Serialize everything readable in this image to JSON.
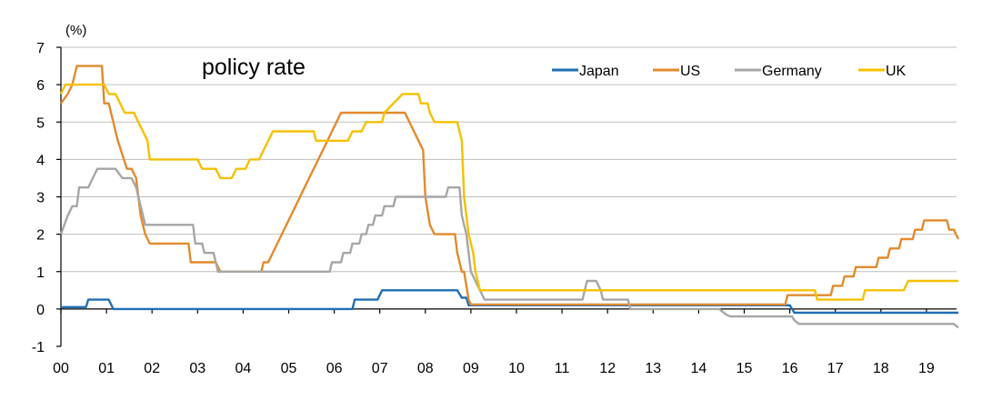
{
  "chart_data": {
    "type": "line",
    "title": "policy rate",
    "ylabel": "(%)",
    "xlabel": "",
    "xlim": [
      0,
      19.7
    ],
    "ylim": [
      -1,
      7
    ],
    "grid": true,
    "legend": "top-right",
    "x_ticks": [
      {
        "v": 0,
        "label": "00"
      },
      {
        "v": 1,
        "label": "01"
      },
      {
        "v": 2,
        "label": "02"
      },
      {
        "v": 3,
        "label": "03"
      },
      {
        "v": 4,
        "label": "04"
      },
      {
        "v": 5,
        "label": "05"
      },
      {
        "v": 6,
        "label": "06"
      },
      {
        "v": 7,
        "label": "07"
      },
      {
        "v": 8,
        "label": "08"
      },
      {
        "v": 9,
        "label": "09"
      },
      {
        "v": 10,
        "label": "10"
      },
      {
        "v": 11,
        "label": "11"
      },
      {
        "v": 12,
        "label": "12"
      },
      {
        "v": 13,
        "label": "13"
      },
      {
        "v": 14,
        "label": "14"
      },
      {
        "v": 15,
        "label": "15"
      },
      {
        "v": 16,
        "label": "16"
      },
      {
        "v": 17,
        "label": "17"
      },
      {
        "v": 18,
        "label": "18"
      },
      {
        "v": 19,
        "label": "19"
      }
    ],
    "y_ticks": [
      {
        "v": 7,
        "label": "7"
      },
      {
        "v": 6,
        "label": "6"
      },
      {
        "v": 5,
        "label": "5"
      },
      {
        "v": 4,
        "label": "4"
      },
      {
        "v": 3,
        "label": "3"
      },
      {
        "v": 2,
        "label": "2"
      },
      {
        "v": 1,
        "label": "1"
      },
      {
        "v": 0,
        "label": "0"
      },
      {
        "v": -1,
        "label": "-1"
      }
    ],
    "series": [
      {
        "name": "Japan",
        "color": "#1f6fb4",
        "points": [
          [
            0,
            0.05
          ],
          [
            0.55,
            0.05
          ],
          [
            0.6,
            0.25
          ],
          [
            1.05,
            0.25
          ],
          [
            1.15,
            0
          ],
          [
            6.4,
            0
          ],
          [
            6.45,
            0.25
          ],
          [
            6.95,
            0.25
          ],
          [
            7.05,
            0.5
          ],
          [
            8.7,
            0.5
          ],
          [
            8.8,
            0.3
          ],
          [
            8.9,
            0.3
          ],
          [
            8.95,
            0.1
          ],
          [
            16.0,
            0.1
          ],
          [
            16.1,
            -0.1
          ],
          [
            19.7,
            -0.1
          ]
        ]
      },
      {
        "name": "US",
        "color": "#e38a2c",
        "points": [
          [
            0,
            5.5
          ],
          [
            0.15,
            5.75
          ],
          [
            0.25,
            6.0
          ],
          [
            0.35,
            6.5
          ],
          [
            0.9,
            6.5
          ],
          [
            0.95,
            5.5
          ],
          [
            1.05,
            5.5
          ],
          [
            1.25,
            4.5
          ],
          [
            1.45,
            3.75
          ],
          [
            1.55,
            3.75
          ],
          [
            1.65,
            3.5
          ],
          [
            1.75,
            2.5
          ],
          [
            1.85,
            2.0
          ],
          [
            1.95,
            1.75
          ],
          [
            2.8,
            1.75
          ],
          [
            2.85,
            1.25
          ],
          [
            3.4,
            1.25
          ],
          [
            3.5,
            1.0
          ],
          [
            4.4,
            1.0
          ],
          [
            4.45,
            1.25
          ],
          [
            4.55,
            1.25
          ],
          [
            4.65,
            1.5
          ],
          [
            4.75,
            1.75
          ],
          [
            4.85,
            2.0
          ],
          [
            4.95,
            2.25
          ],
          [
            5.05,
            2.5
          ],
          [
            5.15,
            2.75
          ],
          [
            5.25,
            3.0
          ],
          [
            5.35,
            3.25
          ],
          [
            5.45,
            3.5
          ],
          [
            5.55,
            3.75
          ],
          [
            5.65,
            4.0
          ],
          [
            5.75,
            4.25
          ],
          [
            5.85,
            4.5
          ],
          [
            5.95,
            4.75
          ],
          [
            6.05,
            5.0
          ],
          [
            6.15,
            5.25
          ],
          [
            7.55,
            5.25
          ],
          [
            7.65,
            5.0
          ],
          [
            7.75,
            4.75
          ],
          [
            7.85,
            4.5
          ],
          [
            7.95,
            4.25
          ],
          [
            8.0,
            3.0
          ],
          [
            8.1,
            2.25
          ],
          [
            8.2,
            2.0
          ],
          [
            8.65,
            2.0
          ],
          [
            8.7,
            1.5
          ],
          [
            8.8,
            1.0
          ],
          [
            8.85,
            1.0
          ],
          [
            8.95,
            0.25
          ],
          [
            9.0,
            0.12
          ],
          [
            15.9,
            0.12
          ],
          [
            15.95,
            0.37
          ],
          [
            16.9,
            0.37
          ],
          [
            16.95,
            0.62
          ],
          [
            17.15,
            0.62
          ],
          [
            17.2,
            0.87
          ],
          [
            17.4,
            0.87
          ],
          [
            17.45,
            1.12
          ],
          [
            17.9,
            1.12
          ],
          [
            17.95,
            1.37
          ],
          [
            18.15,
            1.37
          ],
          [
            18.2,
            1.62
          ],
          [
            18.4,
            1.62
          ],
          [
            18.45,
            1.87
          ],
          [
            18.7,
            1.87
          ],
          [
            18.75,
            2.12
          ],
          [
            18.9,
            2.12
          ],
          [
            18.95,
            2.37
          ],
          [
            19.45,
            2.37
          ],
          [
            19.5,
            2.12
          ],
          [
            19.6,
            2.12
          ],
          [
            19.7,
            1.87
          ]
        ]
      },
      {
        "name": "Germany",
        "color": "#a6a6a6",
        "points": [
          [
            0,
            2.0
          ],
          [
            0.15,
            2.5
          ],
          [
            0.25,
            2.75
          ],
          [
            0.35,
            2.75
          ],
          [
            0.4,
            3.25
          ],
          [
            0.6,
            3.25
          ],
          [
            0.7,
            3.5
          ],
          [
            0.8,
            3.75
          ],
          [
            1.2,
            3.75
          ],
          [
            1.35,
            3.5
          ],
          [
            1.55,
            3.5
          ],
          [
            1.65,
            3.25
          ],
          [
            1.75,
            2.75
          ],
          [
            1.85,
            2.25
          ],
          [
            2.9,
            2.25
          ],
          [
            2.95,
            1.75
          ],
          [
            3.1,
            1.75
          ],
          [
            3.15,
            1.5
          ],
          [
            3.35,
            1.5
          ],
          [
            3.45,
            1.0
          ],
          [
            5.9,
            1.0
          ],
          [
            5.95,
            1.25
          ],
          [
            6.15,
            1.25
          ],
          [
            6.2,
            1.5
          ],
          [
            6.35,
            1.5
          ],
          [
            6.4,
            1.75
          ],
          [
            6.55,
            1.75
          ],
          [
            6.6,
            2.0
          ],
          [
            6.7,
            2.0
          ],
          [
            6.75,
            2.25
          ],
          [
            6.85,
            2.25
          ],
          [
            6.9,
            2.5
          ],
          [
            7.05,
            2.5
          ],
          [
            7.1,
            2.75
          ],
          [
            7.3,
            2.75
          ],
          [
            7.35,
            3.0
          ],
          [
            8.45,
            3.0
          ],
          [
            8.5,
            3.25
          ],
          [
            8.75,
            3.25
          ],
          [
            8.8,
            2.5
          ],
          [
            8.9,
            2.0
          ],
          [
            9.0,
            1.0
          ],
          [
            9.3,
            0.25
          ],
          [
            11.45,
            0.25
          ],
          [
            11.5,
            0.5
          ],
          [
            11.55,
            0.75
          ],
          [
            11.75,
            0.75
          ],
          [
            11.85,
            0.5
          ],
          [
            11.9,
            0.25
          ],
          [
            12.45,
            0.25
          ],
          [
            12.5,
            0.0
          ],
          [
            14.45,
            0.0
          ],
          [
            14.5,
            -0.05
          ],
          [
            14.6,
            -0.15
          ],
          [
            14.7,
            -0.2
          ],
          [
            16.05,
            -0.2
          ],
          [
            16.1,
            -0.3
          ],
          [
            16.2,
            -0.4
          ],
          [
            19.6,
            -0.4
          ],
          [
            19.7,
            -0.5
          ]
        ]
      },
      {
        "name": "UK",
        "color": "#f5c000",
        "points": [
          [
            0,
            5.75
          ],
          [
            0.1,
            6.0
          ],
          [
            0.95,
            6.0
          ],
          [
            1.05,
            5.75
          ],
          [
            1.2,
            5.75
          ],
          [
            1.3,
            5.5
          ],
          [
            1.4,
            5.25
          ],
          [
            1.6,
            5.25
          ],
          [
            1.7,
            5.0
          ],
          [
            1.8,
            4.75
          ],
          [
            1.9,
            4.5
          ],
          [
            1.95,
            4.0
          ],
          [
            3.0,
            4.0
          ],
          [
            3.1,
            3.75
          ],
          [
            3.4,
            3.75
          ],
          [
            3.5,
            3.5
          ],
          [
            3.75,
            3.5
          ],
          [
            3.85,
            3.75
          ],
          [
            4.05,
            3.75
          ],
          [
            4.15,
            4.0
          ],
          [
            4.35,
            4.0
          ],
          [
            4.45,
            4.25
          ],
          [
            4.55,
            4.5
          ],
          [
            4.65,
            4.75
          ],
          [
            5.55,
            4.75
          ],
          [
            5.6,
            4.5
          ],
          [
            6.3,
            4.5
          ],
          [
            6.4,
            4.75
          ],
          [
            6.6,
            4.75
          ],
          [
            6.7,
            5.0
          ],
          [
            7.05,
            5.0
          ],
          [
            7.1,
            5.25
          ],
          [
            7.3,
            5.5
          ],
          [
            7.5,
            5.75
          ],
          [
            7.85,
            5.75
          ],
          [
            7.9,
            5.5
          ],
          [
            8.05,
            5.5
          ],
          [
            8.1,
            5.25
          ],
          [
            8.2,
            5.0
          ],
          [
            8.7,
            5.0
          ],
          [
            8.8,
            4.5
          ],
          [
            8.85,
            3.0
          ],
          [
            8.95,
            2.0
          ],
          [
            9.05,
            1.5
          ],
          [
            9.1,
            1.0
          ],
          [
            9.2,
            0.5
          ],
          [
            16.55,
            0.5
          ],
          [
            16.6,
            0.25
          ],
          [
            17.6,
            0.25
          ],
          [
            17.65,
            0.5
          ],
          [
            18.5,
            0.5
          ],
          [
            18.6,
            0.75
          ],
          [
            19.7,
            0.75
          ]
        ]
      }
    ]
  }
}
